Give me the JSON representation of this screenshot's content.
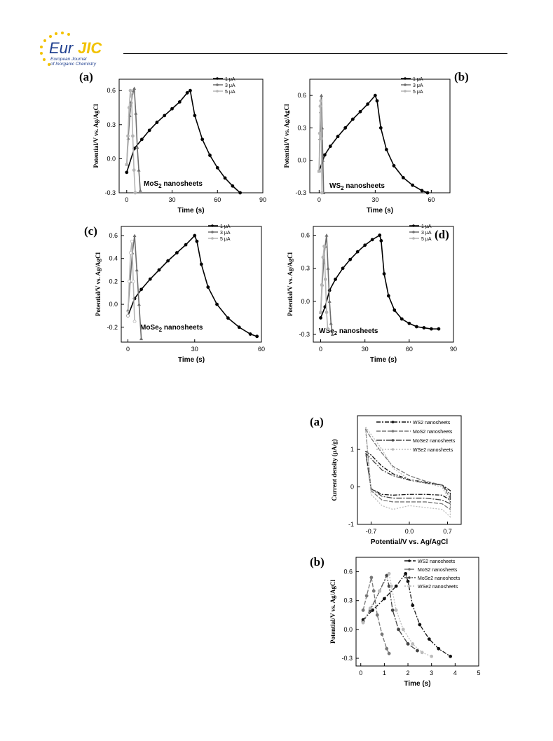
{
  "header": {
    "logo_text_main": "Eur",
    "logo_text_accent": "JIC",
    "logo_sub1": "European Journal",
    "logo_sub2": "of Inorganic Chemistry"
  },
  "colors": {
    "logo_blue": "#1f3f8f",
    "logo_yellow": "#f2c200",
    "s1": "#000000",
    "s2": "#6e6e6e",
    "s3": "#b5b5b5"
  },
  "chart_data": [
    {
      "type": "line",
      "panel_label": "(a)",
      "annotation": "MoS",
      "annotation_sub": "2",
      "annotation_tail": " nanosheets",
      "xlabel": "Time (s)",
      "ylabel": "Potential/V vs. Ag/AgCl",
      "xlim": [
        -5,
        90
      ],
      "ylim": [
        -0.3,
        0.7
      ],
      "xticks": [
        0,
        30,
        60,
        90
      ],
      "yticks": [
        -0.3,
        0.0,
        0.3,
        0.6
      ],
      "ytick_labels": [
        "-0.3",
        "0.0",
        "0.3",
        "0.6"
      ],
      "legend": "top-right",
      "series": [
        {
          "name": "1 μA",
          "x": [
            0,
            5,
            10,
            15,
            20,
            25,
            30,
            35,
            40,
            42,
            45,
            50,
            55,
            60,
            65,
            70,
            75
          ],
          "y": [
            -0.12,
            0.09,
            0.17,
            0.25,
            0.32,
            0.38,
            0.44,
            0.5,
            0.58,
            0.6,
            0.38,
            0.17,
            0.03,
            -0.08,
            -0.17,
            -0.24,
            -0.3
          ]
        },
        {
          "name": "3 μA",
          "x": [
            0,
            1,
            2,
            3,
            4.5,
            5,
            6,
            7,
            8,
            9
          ],
          "y": [
            -0.05,
            0.18,
            0.38,
            0.5,
            0.6,
            0.62,
            0.4,
            0.1,
            -0.1,
            -0.28
          ]
        },
        {
          "name": "5 μA",
          "x": [
            0,
            0.8,
            1.6,
            2.4,
            3.2,
            4,
            4.8,
            5.6
          ],
          "y": [
            -0.05,
            0.2,
            0.45,
            0.6,
            0.55,
            0.2,
            -0.1,
            -0.3
          ]
        }
      ]
    },
    {
      "type": "line",
      "panel_label": "(b)",
      "annotation": "WS",
      "annotation_sub": "2",
      "annotation_tail": " nanosheets",
      "xlabel": "Time (s)",
      "ylabel": "Potential/V vs. Ag/AgCl",
      "xlim": [
        -5,
        70
      ],
      "ylim": [
        -0.3,
        0.75
      ],
      "xticks": [
        0,
        30,
        60
      ],
      "yticks": [
        -0.3,
        0.0,
        0.3,
        0.6
      ],
      "ytick_labels": [
        "-0.3",
        "0.0",
        "0.3",
        "0.6"
      ],
      "legend": "top-right",
      "series": [
        {
          "name": "1 μA",
          "x": [
            0,
            3,
            6,
            10,
            14,
            18,
            22,
            26,
            30,
            31,
            33,
            36,
            40,
            45,
            50,
            55,
            58
          ],
          "y": [
            -0.1,
            0.05,
            0.13,
            0.22,
            0.3,
            0.38,
            0.45,
            0.52,
            0.6,
            0.55,
            0.3,
            0.1,
            -0.05,
            -0.16,
            -0.23,
            -0.28,
            -0.3
          ]
        },
        {
          "name": "3 μA",
          "x": [
            0,
            0.4,
            0.8,
            1.2,
            1.6,
            2.0,
            2.4
          ],
          "y": [
            -0.1,
            0.2,
            0.45,
            0.6,
            0.3,
            0.0,
            -0.3
          ]
        },
        {
          "name": "5 μA",
          "x": [
            0,
            0.3,
            0.6,
            0.9,
            1.2,
            1.5
          ],
          "y": [
            -0.1,
            0.25,
            0.5,
            0.55,
            0.2,
            -0.3
          ]
        }
      ]
    },
    {
      "type": "line",
      "panel_label": "(c)",
      "annotation": "MoSe",
      "annotation_sub": "2",
      "annotation_tail": " nanosheets",
      "xlabel": "Time (s)",
      "ylabel": "Potential/V vs. Ag/AgCl",
      "xlim": [
        -3,
        60
      ],
      "ylim": [
        -0.33,
        0.68
      ],
      "xticks": [
        0,
        30,
        60
      ],
      "yticks": [
        -0.2,
        0.0,
        0.2,
        0.4,
        0.6
      ],
      "ytick_labels": [
        "-0.2",
        "0.0",
        "0.2",
        "0.4",
        "0.6"
      ],
      "legend": "top-right",
      "series": [
        {
          "name": "1 μA",
          "x": [
            0,
            3,
            6,
            10,
            14,
            18,
            22,
            26,
            30,
            31,
            33,
            36,
            40,
            45,
            50,
            55,
            58
          ],
          "y": [
            -0.1,
            0.05,
            0.13,
            0.22,
            0.3,
            0.38,
            0.45,
            0.52,
            0.6,
            0.55,
            0.35,
            0.15,
            0.0,
            -0.12,
            -0.2,
            -0.26,
            -0.28
          ]
        },
        {
          "name": "3 μA",
          "x": [
            0,
            1,
            2,
            3,
            4,
            5,
            6
          ],
          "y": [
            -0.05,
            0.2,
            0.45,
            0.6,
            0.3,
            0.0,
            -0.3
          ]
        },
        {
          "name": "5 μA",
          "x": [
            0,
            0.6,
            1.2,
            1.8,
            2.4,
            3.0
          ],
          "y": [
            -0.1,
            0.2,
            0.45,
            0.55,
            0.2,
            -0.15
          ]
        }
      ]
    },
    {
      "type": "line",
      "panel_label": "(d)",
      "annotation": "WSe",
      "annotation_sub": "2",
      "annotation_tail": " nanosheets",
      "xlabel": "Time (s)",
      "ylabel": "Potential/V vs. Ag/AgCl",
      "xlim": [
        -5,
        90
      ],
      "ylim": [
        -0.37,
        0.68
      ],
      "xticks": [
        0,
        30,
        60,
        90
      ],
      "yticks": [
        -0.3,
        0.0,
        0.3,
        0.6
      ],
      "ytick_labels": [
        "-0.3",
        "0.0",
        "0.3",
        "0.6"
      ],
      "legend": "top-right",
      "series": [
        {
          "name": "1 μA",
          "x": [
            0,
            3,
            6,
            10,
            15,
            20,
            25,
            30,
            35,
            40,
            41,
            43,
            46,
            50,
            55,
            60,
            65,
            70,
            75,
            80
          ],
          "y": [
            -0.15,
            -0.05,
            0.1,
            0.2,
            0.3,
            0.38,
            0.45,
            0.51,
            0.56,
            0.6,
            0.55,
            0.25,
            0.05,
            -0.08,
            -0.16,
            -0.2,
            -0.23,
            -0.24,
            -0.25,
            -0.25
          ]
        },
        {
          "name": "3 μA",
          "x": [
            0,
            1,
            2,
            3,
            4,
            5,
            6,
            7,
            8
          ],
          "y": [
            -0.1,
            0.15,
            0.35,
            0.5,
            0.6,
            0.3,
            0.0,
            -0.2,
            -0.3
          ]
        },
        {
          "name": "5 μA",
          "x": [
            0,
            0.8,
            1.6,
            2.4,
            3.2,
            4.0,
            4.8
          ],
          "y": [
            -0.1,
            0.15,
            0.4,
            0.5,
            0.2,
            -0.1,
            -0.25
          ]
        }
      ]
    },
    {
      "type": "line",
      "panel_label": "(a)",
      "xlabel": "Potential/V vs. Ag/AgCl",
      "ylabel": "Current density (μA/g)",
      "xlim": [
        -0.95,
        0.95
      ],
      "ylim": [
        -1.0,
        1.9
      ],
      "xticks": [
        -0.7,
        0.0,
        0.7
      ],
      "yticks": [
        -1,
        0,
        1
      ],
      "xtick_labels": [
        "-0.7",
        "0.0",
        "0.7"
      ],
      "ytick_labels": [
        "-1",
        "0",
        "1"
      ],
      "legend": "top-right",
      "series": [
        {
          "name": "WS2 nanosheets",
          "x": [
            -0.8,
            -0.7,
            -0.5,
            -0.3,
            0.0,
            0.3,
            0.6,
            0.75,
            0.75,
            0.6,
            0.3,
            0.0,
            -0.3,
            -0.5,
            -0.7,
            -0.8
          ],
          "y": [
            0.95,
            0.85,
            0.55,
            0.35,
            0.2,
            0.12,
            0.05,
            -0.1,
            -0.35,
            -0.22,
            -0.2,
            -0.2,
            -0.22,
            -0.2,
            -0.05,
            0.95
          ]
        },
        {
          "name": "MoS2 nanosheets",
          "x": [
            -0.8,
            -0.7,
            -0.5,
            -0.3,
            0.0,
            0.3,
            0.6,
            0.75,
            0.75,
            0.6,
            0.3,
            0.0,
            -0.3,
            -0.5,
            -0.7,
            -0.8
          ],
          "y": [
            1.55,
            1.3,
            0.9,
            0.55,
            0.3,
            0.15,
            0.05,
            -0.3,
            -0.6,
            -0.45,
            -0.4,
            -0.4,
            -0.4,
            -0.35,
            -0.1,
            1.55
          ]
        },
        {
          "name": "MoSe2 nanosheets",
          "x": [
            -0.8,
            -0.7,
            -0.5,
            -0.3,
            0.0,
            0.3,
            0.6,
            0.75,
            0.75,
            0.6,
            0.3,
            0.0,
            -0.3,
            -0.5,
            -0.7,
            -0.8
          ],
          "y": [
            0.9,
            0.75,
            0.45,
            0.3,
            0.18,
            0.1,
            0.05,
            -0.2,
            -0.45,
            -0.35,
            -0.3,
            -0.3,
            -0.3,
            -0.25,
            -0.05,
            0.9
          ]
        },
        {
          "name": "WSe2 nanosheets",
          "x": [
            -0.8,
            -0.7,
            -0.5,
            -0.3,
            0.0,
            0.3,
            0.6,
            0.75,
            0.75,
            0.6,
            0.3,
            0.0,
            -0.3,
            -0.5,
            -0.7,
            -0.8
          ],
          "y": [
            1.6,
            1.4,
            1.0,
            0.5,
            0.2,
            0.1,
            0.0,
            -0.4,
            -0.8,
            -0.6,
            -0.55,
            -0.5,
            -0.6,
            -0.5,
            -0.2,
            1.6
          ]
        }
      ]
    },
    {
      "type": "line",
      "panel_label": "(b)",
      "xlabel": "Time (s)",
      "ylabel": "Potential/V vs. Ag/AgCl",
      "xlim": [
        -0.2,
        5
      ],
      "ylim": [
        -0.38,
        0.75
      ],
      "xticks": [
        0,
        1,
        2,
        3,
        4,
        5
      ],
      "yticks": [
        -0.3,
        0.0,
        0.3,
        0.6
      ],
      "ytick_labels": [
        "-0.3",
        "0.0",
        "0.3",
        "0.6"
      ],
      "legend": "top-right",
      "series": [
        {
          "name": "WS2 nanosheets",
          "x": [
            0.1,
            0.5,
            1.0,
            1.5,
            1.9,
            2.0,
            2.2,
            2.5,
            2.9,
            3.3,
            3.8
          ],
          "y": [
            0.1,
            0.2,
            0.32,
            0.45,
            0.58,
            0.5,
            0.25,
            0.05,
            -0.1,
            -0.2,
            -0.28
          ]
        },
        {
          "name": "MoS2 nanosheets",
          "x": [
            0.1,
            0.25,
            0.45,
            0.55,
            0.7,
            0.9,
            1.1,
            1.2
          ],
          "y": [
            0.2,
            0.35,
            0.54,
            0.4,
            0.15,
            -0.05,
            -0.2,
            -0.25
          ]
        },
        {
          "name": "MoSe2 nanosheets",
          "x": [
            0.1,
            0.4,
            0.8,
            1.1,
            1.2,
            1.35,
            1.6,
            2.0,
            2.4
          ],
          "y": [
            0.08,
            0.2,
            0.4,
            0.56,
            0.45,
            0.2,
            0.0,
            -0.15,
            -0.22
          ]
        },
        {
          "name": "WSe2 nanosheets",
          "x": [
            0.1,
            0.4,
            0.8,
            1.2,
            1.3,
            1.5,
            1.8,
            2.2,
            2.6,
            3.0
          ],
          "y": [
            0.07,
            0.22,
            0.4,
            0.58,
            0.45,
            0.2,
            0.0,
            -0.15,
            -0.24,
            -0.28
          ]
        }
      ]
    }
  ]
}
